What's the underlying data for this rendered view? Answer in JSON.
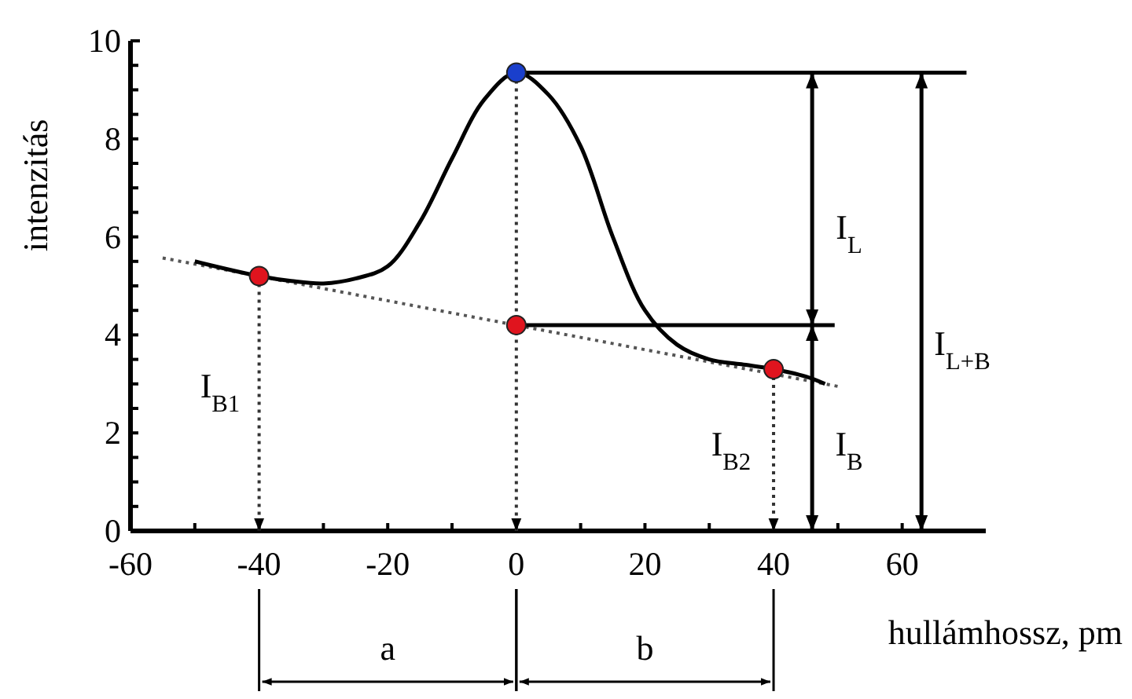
{
  "chart_data": {
    "type": "line",
    "xlabel": "hullámhossz, pm",
    "ylabel": "intenzitás",
    "xlim": [
      -60,
      73
    ],
    "ylim": [
      0,
      10
    ],
    "xticks": [
      -60,
      {
        "value": -50,
        "label": null
      },
      -40,
      {
        "value": -30,
        "label": null
      },
      -20,
      {
        "value": -10,
        "label": null
      },
      0,
      {
        "value": 10,
        "label": null
      },
      20,
      {
        "value": 30,
        "label": null
      },
      40,
      {
        "value": 50,
        "label": null
      },
      60
    ],
    "yticks": [
      0,
      {
        "value": 0.5,
        "label": null
      },
      {
        "value": 1,
        "label": null
      },
      {
        "value": 1.5,
        "label": null
      },
      2,
      {
        "value": 2.5,
        "label": null
      },
      {
        "value": 3,
        "label": null
      },
      {
        "value": 3.5,
        "label": null
      },
      4,
      {
        "value": 4.5,
        "label": null
      },
      {
        "value": 5,
        "label": null
      },
      {
        "value": 5.5,
        "label": null
      },
      6,
      {
        "value": 6.5,
        "label": null
      },
      {
        "value": 7,
        "label": null
      },
      {
        "value": 7.5,
        "label": null
      },
      8,
      {
        "value": 8.5,
        "label": null
      },
      {
        "value": 9,
        "label": null
      },
      {
        "value": 9.5,
        "label": null
      },
      10
    ],
    "grid": false,
    "series": [
      {
        "type": "line",
        "color": "#555555",
        "line_style": "dotted",
        "x": [
          -55,
          50
        ],
        "values": [
          5.57,
          2.95
        ]
      },
      {
        "color": "#000000",
        "line_style": "solid",
        "x": [
          -50,
          -40,
          -35,
          -30,
          -25,
          -20,
          -15,
          -10,
          -5,
          0,
          5,
          10,
          15,
          20,
          25,
          30,
          35,
          40,
          45,
          48
        ],
        "values": [
          5.5,
          5.2,
          5.1,
          5.05,
          5.15,
          5.4,
          6.3,
          7.6,
          8.8,
          9.35,
          8.9,
          7.85,
          6.0,
          4.5,
          3.8,
          3.5,
          3.4,
          3.3,
          3.15,
          3.0
        ]
      },
      {
        "type": "line",
        "color": "#000000",
        "line_style": "solid",
        "x": [
          0,
          70
        ],
        "values": [
          9.35,
          9.35
        ]
      },
      {
        "type": "line",
        "color": "#000000",
        "line_style": "solid",
        "x": [
          0,
          49.5
        ],
        "values": [
          4.2,
          4.2
        ]
      },
      {
        "type": "line",
        "color": "#333333",
        "line_style": "dotted",
        "x": [
          -40,
          -40
        ],
        "values": [
          5.2,
          0
        ]
      },
      {
        "type": "line",
        "color": "#333333",
        "line_style": "dotted",
        "x": [
          0,
          0
        ],
        "values": [
          9.35,
          0
        ]
      },
      {
        "type": "line",
        "color": "#333333",
        "line_style": "dotted",
        "x": [
          40,
          40
        ],
        "values": [
          3.3,
          0
        ]
      },
      {
        "type": "line",
        "color": "#000000",
        "line_style": "solid",
        "x": [
          46,
          46
        ],
        "values": [
          4.2,
          9.35
        ]
      },
      {
        "type": "line",
        "color": "#000000",
        "line_style": "solid",
        "x": [
          46,
          46
        ],
        "values": [
          0,
          4.2
        ]
      },
      {
        "type": "line",
        "color": "#000000",
        "line_style": "solid",
        "x": [
          63,
          63
        ],
        "values": [
          0,
          9.35
        ]
      },
      {
        "type": "scatter",
        "color": "#e0141e",
        "marker": "circle",
        "x": [
          -40,
          0,
          40
        ],
        "values": [
          5.2,
          4.2,
          3.3
        ]
      },
      {
        "type": "scatter",
        "color": "#1a3fcc",
        "marker": "circle",
        "x": [
          0
        ],
        "values": [
          9.35
        ]
      }
    ],
    "annotations": [
      "I$_{B1}$",
      "I$_{B2}$",
      "I$_{B}$",
      "I$_{L}$",
      "I$_{L+B}$",
      "a",
      "b"
    ]
  }
}
